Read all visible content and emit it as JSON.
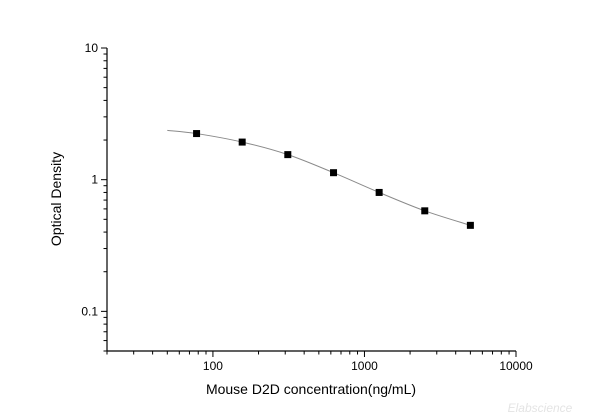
{
  "chart_data": {
    "type": "scatter",
    "title": "",
    "xlabel": "Mouse D2D concentration(ng/mL)",
    "ylabel": "Optical Density",
    "x_scale": "log",
    "y_scale": "log",
    "xlim": [
      20,
      10000
    ],
    "ylim": [
      0.05,
      10
    ],
    "x_ticks": [
      100,
      1000,
      10000
    ],
    "x_tick_labels": [
      "100",
      "1000",
      "10000"
    ],
    "y_ticks": [
      0.1,
      1,
      10
    ],
    "y_tick_labels": [
      "0.1",
      "1",
      "10"
    ],
    "grid": false,
    "series": [
      {
        "marker": "square",
        "x": [
          78,
          156,
          312,
          625,
          1250,
          2500,
          5000
        ],
        "y": [
          2.24,
          1.93,
          1.55,
          1.13,
          0.8,
          0.58,
          0.45
        ]
      }
    ],
    "fit_curve": {
      "x": [
        50,
        78,
        156,
        312,
        625,
        1250,
        2500,
        5000
      ],
      "y": [
        2.37,
        2.24,
        1.93,
        1.55,
        1.13,
        0.8,
        0.58,
        0.45
      ]
    },
    "colors": {
      "marker": "#000000",
      "curve": "#8a8a8a",
      "axis": "#000000"
    }
  },
  "watermark": "Elabscience"
}
